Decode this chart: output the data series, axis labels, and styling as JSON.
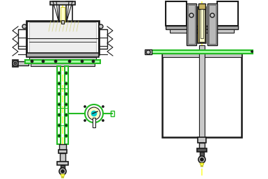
{
  "line_color": "#1a1a1a",
  "green_color": "#22bb22",
  "yellow_color": "#ffff44",
  "light_yellow": "#ffffcc",
  "gray_light": "#c8c8c8",
  "gray_mid": "#aaaaaa",
  "gray_dark": "#555555",
  "cyan_color": "#00cccc",
  "tan_color": "#c8b464",
  "white": "#ffffff",
  "fig_width": 3.85,
  "fig_height": 2.57,
  "dpi": 100
}
